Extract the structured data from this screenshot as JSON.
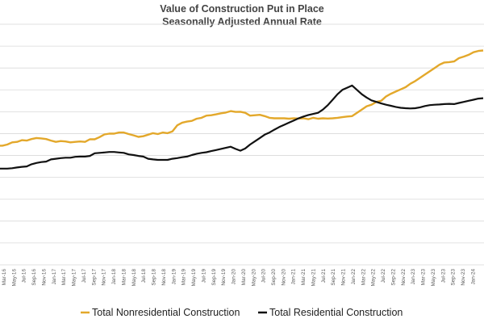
{
  "chart_data": {
    "type": "line",
    "title": "Value of Construction Put in Place",
    "subtitle": "Seasonally Adjusted Annual Rate",
    "xlabel": "",
    "ylabel": "",
    "ylim": [
      0,
      11
    ],
    "grid": "horizontal",
    "legend_position": "bottom",
    "x_tick_labels": [
      "Mar-16",
      "May-16",
      "Jul-16",
      "Sep-16",
      "Nov-16",
      "Jan-17",
      "Mar-17",
      "May-17",
      "Jul-17",
      "Sep-17",
      "Nov-17",
      "Jan-18",
      "Mar-18",
      "May-18",
      "Jul-18",
      "Sep-18",
      "Nov-18",
      "Jan-19",
      "Mar-19",
      "May-19",
      "Jul-19",
      "Sep-19",
      "Nov-19",
      "Jan-20",
      "Mar-20",
      "May-20",
      "Jul-20",
      "Sep-20",
      "Nov-20",
      "Jan-21",
      "Mar-21",
      "May-21",
      "Jul-21",
      "Sep-21",
      "Nov-21",
      "Jan-22",
      "Mar-22",
      "May-22",
      "Jul-22",
      "Sep-22",
      "Nov-22",
      "Jan-23",
      "Mar-23",
      "May-23",
      "Jul-23",
      "Sep-23",
      "Nov-23",
      "Jan-24"
    ],
    "series": [
      {
        "name": "Total Nonresidential Construction",
        "color": "#E3A82B",
        "values": [
          5.45,
          5.45,
          5.5,
          5.6,
          5.62,
          5.7,
          5.68,
          5.75,
          5.8,
          5.78,
          5.75,
          5.68,
          5.62,
          5.66,
          5.64,
          5.6,
          5.62,
          5.64,
          5.62,
          5.74,
          5.74,
          5.84,
          5.96,
          6.0,
          6.0,
          6.05,
          6.05,
          5.98,
          5.92,
          5.85,
          5.88,
          5.95,
          6.02,
          5.98,
          6.05,
          6.02,
          6.1,
          6.38,
          6.5,
          6.55,
          6.58,
          6.68,
          6.72,
          6.82,
          6.84,
          6.88,
          6.93,
          6.96,
          7.03,
          6.99,
          7.0,
          6.95,
          6.82,
          6.84,
          6.86,
          6.8,
          6.72,
          6.7,
          6.7,
          6.7,
          6.68,
          6.7,
          6.69,
          6.7,
          6.66,
          6.72,
          6.68,
          6.7,
          6.69,
          6.7,
          6.72,
          6.75,
          6.78,
          6.8,
          6.95,
          7.1,
          7.25,
          7.32,
          7.45,
          7.5,
          7.7,
          7.82,
          7.92,
          8.02,
          8.12,
          8.28,
          8.4,
          8.55,
          8.7,
          8.85,
          9.0,
          9.15,
          9.25,
          9.27,
          9.3,
          9.45,
          9.52,
          9.6,
          9.72,
          9.78,
          9.8
        ]
      },
      {
        "name": "Total Residential Construction",
        "color": "#111111",
        "values": [
          4.4,
          4.4,
          4.4,
          4.42,
          4.45,
          4.48,
          4.5,
          4.6,
          4.66,
          4.7,
          4.72,
          4.82,
          4.85,
          4.88,
          4.9,
          4.9,
          4.94,
          4.95,
          4.95,
          4.98,
          5.1,
          5.12,
          5.14,
          5.16,
          5.16,
          5.14,
          5.12,
          5.05,
          5.02,
          4.98,
          4.95,
          4.85,
          4.82,
          4.8,
          4.8,
          4.8,
          4.85,
          4.88,
          4.92,
          4.95,
          5.02,
          5.08,
          5.12,
          5.15,
          5.2,
          5.25,
          5.3,
          5.35,
          5.4,
          5.3,
          5.22,
          5.32,
          5.5,
          5.65,
          5.8,
          5.95,
          6.05,
          6.18,
          6.3,
          6.4,
          6.5,
          6.6,
          6.7,
          6.78,
          6.85,
          6.9,
          6.95,
          7.1,
          7.3,
          7.55,
          7.8,
          8.0,
          8.1,
          8.2,
          8.0,
          7.8,
          7.65,
          7.52,
          7.45,
          7.38,
          7.32,
          7.27,
          7.22,
          7.18,
          7.16,
          7.15,
          7.16,
          7.2,
          7.26,
          7.3,
          7.32,
          7.33,
          7.35,
          7.36,
          7.35,
          7.4,
          7.45,
          7.5,
          7.55,
          7.6,
          7.62
        ]
      }
    ]
  }
}
